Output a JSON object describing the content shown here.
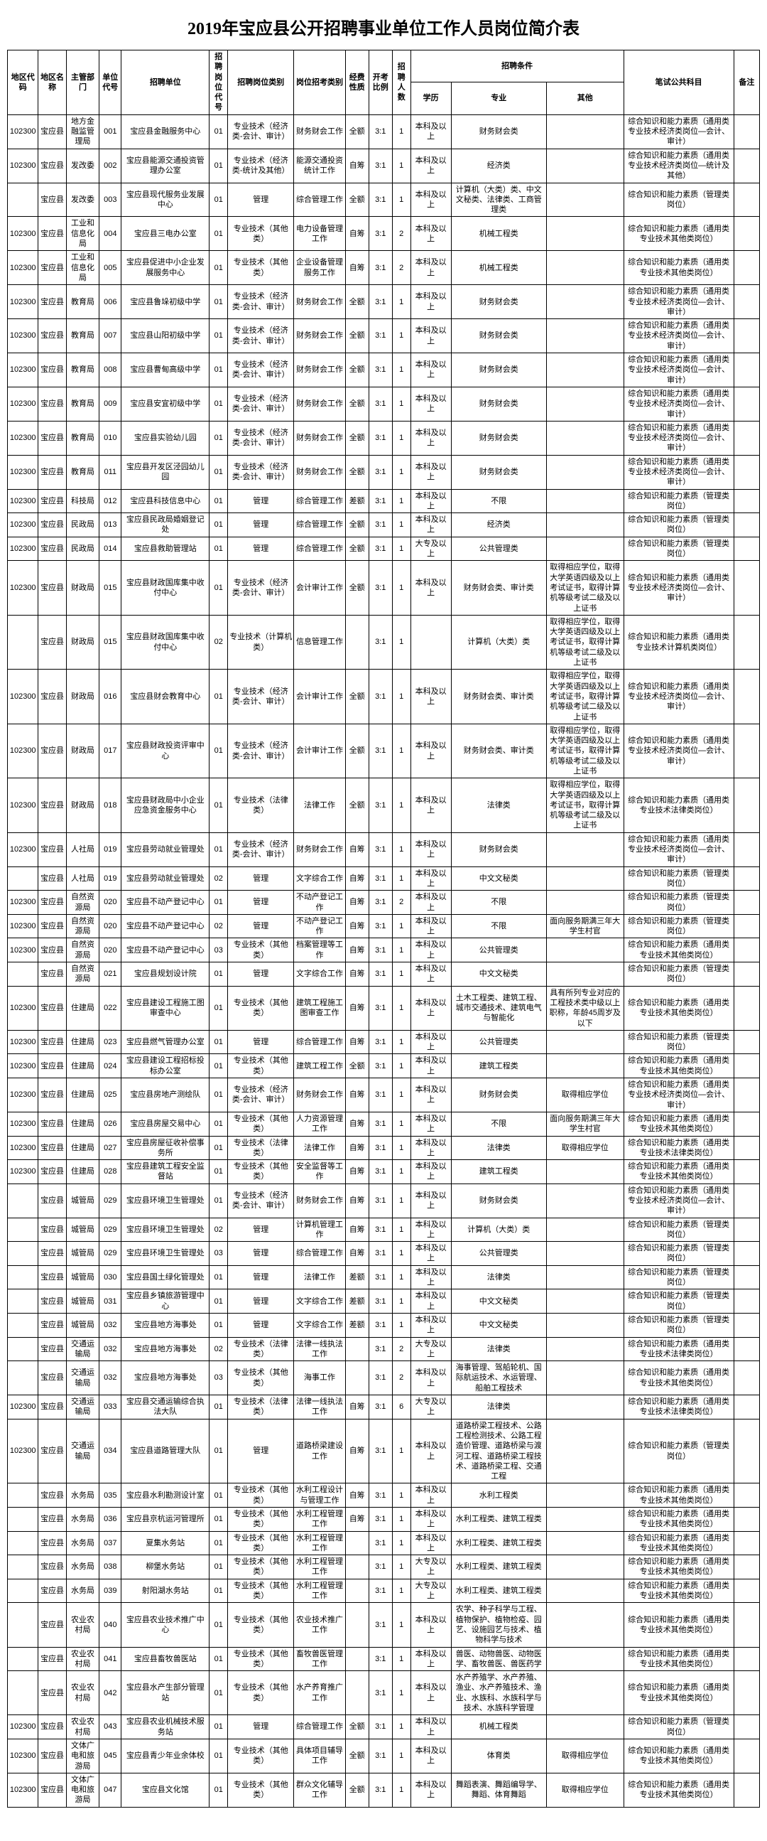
{
  "title": "2019年宝应县公开招聘事业单位工作人员岗位简介表",
  "headers": {
    "h1": "地区代码",
    "h2": "地区名称",
    "h3": "主管部门",
    "h4": "单位代号",
    "h5": "招聘单位",
    "h6": "招聘岗位代号",
    "h7": "招聘岗位类别",
    "h8": "岗位招考类别",
    "h9": "经费性质",
    "h10": "开考比例",
    "h11": "招聘人数",
    "h12": "招聘条件",
    "h12a": "学历",
    "h12b": "专业",
    "h12c": "其他",
    "h13": "笔试公共科目",
    "h14": "备注"
  },
  "rows": [
    {
      "c": "102300",
      "n": "宝应县",
      "d": "地方金融监管理局",
      "uc": "001",
      "u": "宝应县金融服务中心",
      "pc": "01",
      "pt": "专业技术（经济类-会计、审计）",
      "cat": "财务财会工作",
      "f": "全额",
      "r": "3:1",
      "num": "1",
      "edu": "本科及以上",
      "maj": "财务财会类",
      "oth": "",
      "ex": "综合知识和能力素质（通用类专业技术经济类岗位—会计、审计）",
      "rm": ""
    },
    {
      "c": "102300",
      "n": "宝应县",
      "d": "发改委",
      "uc": "002",
      "u": "宝应县能源交通投资管理办公室",
      "pc": "01",
      "pt": "专业技术（经济类-统计及其他）",
      "cat": "能源交通投资统计工作",
      "f": "自筹",
      "r": "3:1",
      "num": "1",
      "edu": "本科及以上",
      "maj": "经济类",
      "oth": "",
      "ex": "综合知识和能力素质（通用类专业技术经济类岗位—统计及其他）",
      "rm": ""
    },
    {
      "c": "",
      "n": "宝应县",
      "d": "发改委",
      "uc": "003",
      "u": "宝应县现代服务业发展中心",
      "pc": "01",
      "pt": "管理",
      "cat": "综合管理工作",
      "f": "全额",
      "r": "3:1",
      "num": "1",
      "edu": "本科及以上",
      "maj": "计算机（大类）类、中文文秘类、法律类、工商管理类",
      "oth": "",
      "ex": "综合知识和能力素质（管理类岗位）",
      "rm": ""
    },
    {
      "c": "102300",
      "n": "宝应县",
      "d": "工业和信息化局",
      "uc": "004",
      "u": "宝应县三电办公室",
      "pc": "01",
      "pt": "专业技术（其他类）",
      "cat": "电力设备管理工作",
      "f": "自筹",
      "r": "3:1",
      "num": "2",
      "edu": "本科及以上",
      "maj": "机械工程类",
      "oth": "",
      "ex": "综合知识和能力素质（通用类专业技术其他类岗位）",
      "rm": ""
    },
    {
      "c": "102300",
      "n": "宝应县",
      "d": "工业和信息化局",
      "uc": "005",
      "u": "宝应县促进中小企业发展服务中心",
      "pc": "01",
      "pt": "专业技术（其他类）",
      "cat": "企业设备管理服务工作",
      "f": "自筹",
      "r": "3:1",
      "num": "2",
      "edu": "本科及以上",
      "maj": "机械工程类",
      "oth": "",
      "ex": "综合知识和能力素质（通用类专业技术其他类岗位）",
      "rm": ""
    },
    {
      "c": "102300",
      "n": "宝应县",
      "d": "教育局",
      "uc": "006",
      "u": "宝应县鲁垛初级中学",
      "pc": "01",
      "pt": "专业技术（经济类-会计、审计）",
      "cat": "财务财会工作",
      "f": "全额",
      "r": "3:1",
      "num": "1",
      "edu": "本科及以上",
      "maj": "财务财会类",
      "oth": "",
      "ex": "综合知识和能力素质（通用类专业技术经济类岗位—会计、审计）",
      "rm": ""
    },
    {
      "c": "102300",
      "n": "宝应县",
      "d": "教育局",
      "uc": "007",
      "u": "宝应县山阳初级中学",
      "pc": "01",
      "pt": "专业技术（经济类-会计、审计）",
      "cat": "财务财会工作",
      "f": "全额",
      "r": "3:1",
      "num": "1",
      "edu": "本科及以上",
      "maj": "财务财会类",
      "oth": "",
      "ex": "综合知识和能力素质（通用类专业技术经济类岗位—会计、审计）",
      "rm": ""
    },
    {
      "c": "102300",
      "n": "宝应县",
      "d": "教育局",
      "uc": "008",
      "u": "宝应县曹甸高级中学",
      "pc": "01",
      "pt": "专业技术（经济类-会计、审计）",
      "cat": "财务财会工作",
      "f": "全额",
      "r": "3:1",
      "num": "1",
      "edu": "本科及以上",
      "maj": "财务财会类",
      "oth": "",
      "ex": "综合知识和能力素质（通用类专业技术经济类岗位—会计、审计）",
      "rm": ""
    },
    {
      "c": "102300",
      "n": "宝应县",
      "d": "教育局",
      "uc": "009",
      "u": "宝应县安宜初级中学",
      "pc": "01",
      "pt": "专业技术（经济类-会计、审计）",
      "cat": "财务财会工作",
      "f": "全额",
      "r": "3:1",
      "num": "1",
      "edu": "本科及以上",
      "maj": "财务财会类",
      "oth": "",
      "ex": "综合知识和能力素质（通用类专业技术经济类岗位—会计、审计）",
      "rm": ""
    },
    {
      "c": "102300",
      "n": "宝应县",
      "d": "教育局",
      "uc": "010",
      "u": "宝应县实验幼儿园",
      "pc": "01",
      "pt": "专业技术（经济类-会计、审计）",
      "cat": "财务财会工作",
      "f": "全额",
      "r": "3:1",
      "num": "1",
      "edu": "本科及以上",
      "maj": "财务财会类",
      "oth": "",
      "ex": "综合知识和能力素质（通用类专业技术经济类岗位—会计、审计）",
      "rm": ""
    },
    {
      "c": "102300",
      "n": "宝应县",
      "d": "教育局",
      "uc": "011",
      "u": "宝应县开发区泾园幼儿园",
      "pc": "01",
      "pt": "专业技术（经济类-会计、审计）",
      "cat": "财务财会工作",
      "f": "全额",
      "r": "3:1",
      "num": "1",
      "edu": "本科及以上",
      "maj": "财务财会类",
      "oth": "",
      "ex": "综合知识和能力素质（通用类专业技术经济类岗位—会计、审计）",
      "rm": ""
    },
    {
      "c": "102300",
      "n": "宝应县",
      "d": "科技局",
      "uc": "012",
      "u": "宝应县科技信息中心",
      "pc": "01",
      "pt": "管理",
      "cat": "综合管理工作",
      "f": "差额",
      "r": "3:1",
      "num": "1",
      "edu": "本科及以上",
      "maj": "不限",
      "oth": "",
      "ex": "综合知识和能力素质（管理类岗位）",
      "rm": ""
    },
    {
      "c": "102300",
      "n": "宝应县",
      "d": "民政局",
      "uc": "013",
      "u": "宝应县民政局婚姻登记处",
      "pc": "01",
      "pt": "管理",
      "cat": "综合管理工作",
      "f": "全额",
      "r": "3:1",
      "num": "1",
      "edu": "本科及以上",
      "maj": "经济类",
      "oth": "",
      "ex": "综合知识和能力素质（管理类岗位）",
      "rm": ""
    },
    {
      "c": "102300",
      "n": "宝应县",
      "d": "民政局",
      "uc": "014",
      "u": "宝应县救助管理站",
      "pc": "01",
      "pt": "管理",
      "cat": "综合管理工作",
      "f": "全额",
      "r": "3:1",
      "num": "1",
      "edu": "大专及以上",
      "maj": "公共管理类",
      "oth": "",
      "ex": "综合知识和能力素质（管理类岗位）",
      "rm": ""
    },
    {
      "c": "102300",
      "n": "宝应县",
      "d": "财政局",
      "uc": "015",
      "u": "宝应县财政国库集中收付中心",
      "pc": "01",
      "pt": "专业技术（经济类-会计、审计）",
      "cat": "会计审计工作",
      "f": "全额",
      "r": "3:1",
      "num": "1",
      "edu": "本科及以上",
      "maj": "财务财会类、审计类",
      "oth": "取得相应学位，取得大学英语四级及以上考试证书，取得计算机等级考试二级及以上证书",
      "ex": "综合知识和能力素质（通用类专业技术经济类岗位—会计、审计）",
      "rm": ""
    },
    {
      "c": "",
      "n": "宝应县",
      "d": "财政局",
      "uc": "015",
      "u": "宝应县财政国库集中收付中心",
      "pc": "02",
      "pt": "专业技术（计算机类）",
      "cat": "信息管理工作",
      "f": "",
      "r": "3:1",
      "num": "1",
      "edu": "",
      "maj": "计算机（大类）类",
      "oth": "取得相应学位，取得大学英语四级及以上考试证书，取得计算机等级考试二级及以上证书",
      "ex": "综合知识和能力素质（通用类专业技术计算机类岗位）",
      "rm": ""
    },
    {
      "c": "102300",
      "n": "宝应县",
      "d": "财政局",
      "uc": "016",
      "u": "宝应县财会教育中心",
      "pc": "01",
      "pt": "专业技术（经济类-会计、审计）",
      "cat": "会计审计工作",
      "f": "全额",
      "r": "3:1",
      "num": "1",
      "edu": "本科及以上",
      "maj": "财务财会类、审计类",
      "oth": "取得相应学位，取得大学英语四级及以上考试证书，取得计算机等级考试二级及以上证书",
      "ex": "综合知识和能力素质（通用类专业技术经济类岗位—会计、审计）",
      "rm": ""
    },
    {
      "c": "102300",
      "n": "宝应县",
      "d": "财政局",
      "uc": "017",
      "u": "宝应县财政投资评审中心",
      "pc": "01",
      "pt": "专业技术（经济类-会计、审计）",
      "cat": "会计审计工作",
      "f": "全额",
      "r": "3:1",
      "num": "1",
      "edu": "本科及以上",
      "maj": "财务财会类、审计类",
      "oth": "取得相应学位，取得大学英语四级及以上考试证书，取得计算机等级考试二级及以上证书",
      "ex": "综合知识和能力素质（通用类专业技术经济类岗位—会计、审计）",
      "rm": ""
    },
    {
      "c": "102300",
      "n": "宝应县",
      "d": "财政局",
      "uc": "018",
      "u": "宝应县财政局中小企业应急资金服务中心",
      "pc": "01",
      "pt": "专业技术（法律类）",
      "cat": "法律工作",
      "f": "全额",
      "r": "3:1",
      "num": "1",
      "edu": "本科及以上",
      "maj": "法律类",
      "oth": "取得相应学位，取得大学英语四级及以上考试证书，取得计算机等级考试二级及以上证书",
      "ex": "综合知识和能力素质（通用类专业技术法律类岗位）",
      "rm": ""
    },
    {
      "c": "102300",
      "n": "宝应县",
      "d": "人社局",
      "uc": "019",
      "u": "宝应县劳动就业管理处",
      "pc": "01",
      "pt": "专业技术（经济类-会计、审计）",
      "cat": "财务财会工作",
      "f": "自筹",
      "r": "3:1",
      "num": "1",
      "edu": "本科及以上",
      "maj": "财务财会类",
      "oth": "",
      "ex": "综合知识和能力素质（通用类专业技术经济类岗位—会计、审计）",
      "rm": ""
    },
    {
      "c": "",
      "n": "宝应县",
      "d": "人社局",
      "uc": "019",
      "u": "宝应县劳动就业管理处",
      "pc": "02",
      "pt": "管理",
      "cat": "文字综合工作",
      "f": "自筹",
      "r": "3:1",
      "num": "1",
      "edu": "本科及以上",
      "maj": "中文文秘类",
      "oth": "",
      "ex": "综合知识和能力素质（管理类岗位）",
      "rm": ""
    },
    {
      "c": "102300",
      "n": "宝应县",
      "d": "自然资源局",
      "uc": "020",
      "u": "宝应县不动产登记中心",
      "pc": "01",
      "pt": "管理",
      "cat": "不动产登记工作",
      "f": "自筹",
      "r": "3:1",
      "num": "2",
      "edu": "本科及以上",
      "maj": "不限",
      "oth": "",
      "ex": "综合知识和能力素质（管理类岗位）",
      "rm": ""
    },
    {
      "c": "102300",
      "n": "宝应县",
      "d": "自然资源局",
      "uc": "020",
      "u": "宝应县不动产登记中心",
      "pc": "02",
      "pt": "管理",
      "cat": "不动产登记工作",
      "f": "自筹",
      "r": "3:1",
      "num": "1",
      "edu": "本科及以上",
      "maj": "不限",
      "oth": "面向服务期满三年大学生村官",
      "ex": "综合知识和能力素质（管理类岗位）",
      "rm": ""
    },
    {
      "c": "102300",
      "n": "宝应县",
      "d": "自然资源局",
      "uc": "020",
      "u": "宝应县不动产登记中心",
      "pc": "03",
      "pt": "专业技术（其他类）",
      "cat": "档案管理等工作",
      "f": "自筹",
      "r": "3:1",
      "num": "1",
      "edu": "本科及以上",
      "maj": "公共管理类",
      "oth": "",
      "ex": "综合知识和能力素质（通用类专业技术其他类岗位）",
      "rm": ""
    },
    {
      "c": "",
      "n": "宝应县",
      "d": "自然资源局",
      "uc": "021",
      "u": "宝应县规划设计院",
      "pc": "01",
      "pt": "管理",
      "cat": "文字综合工作",
      "f": "自筹",
      "r": "3:1",
      "num": "1",
      "edu": "本科及以上",
      "maj": "中文文秘类",
      "oth": "",
      "ex": "综合知识和能力素质（管理类岗位）",
      "rm": ""
    },
    {
      "c": "102300",
      "n": "宝应县",
      "d": "住建局",
      "uc": "022",
      "u": "宝应县建设工程施工图审查中心",
      "pc": "01",
      "pt": "专业技术（其他类）",
      "cat": "建筑工程施工图审查工作",
      "f": "自筹",
      "r": "3:1",
      "num": "1",
      "edu": "本科及以上",
      "maj": "土木工程类、建筑工程、城市交通技术、建筑电气与智能化",
      "oth": "具有所列专业对应的工程技术类中级以上职称，年龄45周岁及以下",
      "ex": "综合知识和能力素质（通用类专业技术其他类岗位）",
      "rm": ""
    },
    {
      "c": "102300",
      "n": "宝应县",
      "d": "住建局",
      "uc": "023",
      "u": "宝应县燃气管理办公室",
      "pc": "01",
      "pt": "管理",
      "cat": "综合管理工作",
      "f": "自筹",
      "r": "3:1",
      "num": "1",
      "edu": "本科及以上",
      "maj": "公共管理类",
      "oth": "",
      "ex": "综合知识和能力素质（管理类岗位）",
      "rm": ""
    },
    {
      "c": "102300",
      "n": "宝应县",
      "d": "住建局",
      "uc": "024",
      "u": "宝应县建设工程招标投标办公室",
      "pc": "01",
      "pt": "专业技术（其他类）",
      "cat": "建筑工程工作",
      "f": "全额",
      "r": "3:1",
      "num": "1",
      "edu": "本科及以上",
      "maj": "建筑工程类",
      "oth": "",
      "ex": "综合知识和能力素质（通用类专业技术其他类岗位）",
      "rm": ""
    },
    {
      "c": "102300",
      "n": "宝应县",
      "d": "住建局",
      "uc": "025",
      "u": "宝应县房地产测绘队",
      "pc": "01",
      "pt": "专业技术（经济类-会计、审计）",
      "cat": "财务财会工作",
      "f": "自筹",
      "r": "3:1",
      "num": "1",
      "edu": "本科及以上",
      "maj": "财务财会类",
      "oth": "取得相应学位",
      "ex": "综合知识和能力素质（通用类专业技术经济类岗位—会计、审计）",
      "rm": ""
    },
    {
      "c": "102300",
      "n": "宝应县",
      "d": "住建局",
      "uc": "026",
      "u": "宝应县房屋交易中心",
      "pc": "01",
      "pt": "专业技术（其他类）",
      "cat": "人力资源管理工作",
      "f": "自筹",
      "r": "3:1",
      "num": "1",
      "edu": "本科及以上",
      "maj": "不限",
      "oth": "面向服务期满三年大学生村官",
      "ex": "综合知识和能力素质（通用类专业技术其他类岗位）",
      "rm": ""
    },
    {
      "c": "102300",
      "n": "宝应县",
      "d": "住建局",
      "uc": "027",
      "u": "宝应县房屋征收补偿事务所",
      "pc": "01",
      "pt": "专业技术（法律类）",
      "cat": "法律工作",
      "f": "自筹",
      "r": "3:1",
      "num": "1",
      "edu": "本科及以上",
      "maj": "法律类",
      "oth": "取得相应学位",
      "ex": "综合知识和能力素质（通用类专业技术法律类岗位）",
      "rm": ""
    },
    {
      "c": "102300",
      "n": "宝应县",
      "d": "住建局",
      "uc": "028",
      "u": "宝应县建筑工程安全监督站",
      "pc": "01",
      "pt": "专业技术（其他类）",
      "cat": "安全监督等工作",
      "f": "自筹",
      "r": "3:1",
      "num": "1",
      "edu": "本科及以上",
      "maj": "建筑工程类",
      "oth": "",
      "ex": "综合知识和能力素质（通用类专业技术其他类岗位）",
      "rm": ""
    },
    {
      "c": "",
      "n": "宝应县",
      "d": "城管局",
      "uc": "029",
      "u": "宝应县环境卫生管理处",
      "pc": "01",
      "pt": "专业技术（经济类-会计、审计）",
      "cat": "财务财会工作",
      "f": "自筹",
      "r": "3:1",
      "num": "1",
      "edu": "本科及以上",
      "maj": "财务财会类",
      "oth": "",
      "ex": "综合知识和能力素质（通用类专业技术经济类岗位—会计、审计）",
      "rm": ""
    },
    {
      "c": "",
      "n": "宝应县",
      "d": "城管局",
      "uc": "029",
      "u": "宝应县环境卫生管理处",
      "pc": "02",
      "pt": "管理",
      "cat": "计算机管理工作",
      "f": "自筹",
      "r": "3:1",
      "num": "1",
      "edu": "本科及以上",
      "maj": "计算机（大类）类",
      "oth": "",
      "ex": "综合知识和能力素质（管理类岗位）",
      "rm": ""
    },
    {
      "c": "",
      "n": "宝应县",
      "d": "城管局",
      "uc": "029",
      "u": "宝应县环境卫生管理处",
      "pc": "03",
      "pt": "管理",
      "cat": "综合管理工作",
      "f": "自筹",
      "r": "3:1",
      "num": "1",
      "edu": "本科及以上",
      "maj": "公共管理类",
      "oth": "",
      "ex": "综合知识和能力素质（管理类岗位）",
      "rm": ""
    },
    {
      "c": "",
      "n": "宝应县",
      "d": "城管局",
      "uc": "030",
      "u": "宝应县国土绿化管理处",
      "pc": "01",
      "pt": "管理",
      "cat": "法律工作",
      "f": "差额",
      "r": "3:1",
      "num": "1",
      "edu": "本科及以上",
      "maj": "法律类",
      "oth": "",
      "ex": "综合知识和能力素质（管理类岗位）",
      "rm": ""
    },
    {
      "c": "",
      "n": "宝应县",
      "d": "城管局",
      "uc": "031",
      "u": "宝应县乡镇旅游管理中心",
      "pc": "01",
      "pt": "管理",
      "cat": "文字综合工作",
      "f": "差额",
      "r": "3:1",
      "num": "1",
      "edu": "本科及以上",
      "maj": "中文文秘类",
      "oth": "",
      "ex": "综合知识和能力素质（管理类岗位）",
      "rm": ""
    },
    {
      "c": "",
      "n": "宝应县",
      "d": "城管局",
      "uc": "032",
      "u": "宝应县地方海事处",
      "pc": "01",
      "pt": "管理",
      "cat": "文字综合工作",
      "f": "差额",
      "r": "3:1",
      "num": "1",
      "edu": "本科及以上",
      "maj": "中文文秘类",
      "oth": "",
      "ex": "综合知识和能力素质（管理类岗位）",
      "rm": ""
    },
    {
      "c": "",
      "n": "宝应县",
      "d": "交通运输局",
      "uc": "032",
      "u": "宝应县地方海事处",
      "pc": "02",
      "pt": "专业技术（法律类）",
      "cat": "法律一线执法工作",
      "f": "",
      "r": "3:1",
      "num": "2",
      "edu": "大专及以上",
      "maj": "法律类",
      "oth": "",
      "ex": "综合知识和能力素质（通用类专业技术法律类岗位）",
      "rm": ""
    },
    {
      "c": "",
      "n": "宝应县",
      "d": "交通运输局",
      "uc": "032",
      "u": "宝应县地方海事处",
      "pc": "03",
      "pt": "专业技术（其他类）",
      "cat": "海事工作",
      "f": "",
      "r": "3:1",
      "num": "2",
      "edu": "本科及以上",
      "maj": "海事管理、驾船轮机、国际航运技术、水运管理、船舶工程技术",
      "oth": "",
      "ex": "综合知识和能力素质（通用类专业技术其他类岗位）",
      "rm": ""
    },
    {
      "c": "102300",
      "n": "宝应县",
      "d": "交通运输局",
      "uc": "033",
      "u": "宝应县交通运输综合执法大队",
      "pc": "01",
      "pt": "专业技术（法律类）",
      "cat": "法律一线执法工作",
      "f": "自筹",
      "r": "3:1",
      "num": "6",
      "edu": "大专及以上",
      "maj": "法律类",
      "oth": "",
      "ex": "综合知识和能力素质（通用类专业技术法律类岗位）",
      "rm": ""
    },
    {
      "c": "102300",
      "n": "宝应县",
      "d": "交通运输局",
      "uc": "034",
      "u": "宝应县道路管理大队",
      "pc": "01",
      "pt": "管理",
      "cat": "道路桥梁建设工作",
      "f": "自筹",
      "r": "3:1",
      "num": "1",
      "edu": "本科及以上",
      "maj": "道路桥梁工程技术、公路工程检测技术、公路工程造价管理、道路桥梁与渡河工程、道路桥梁工程技术、道路桥梁工程、交通工程",
      "oth": "",
      "ex": "综合知识和能力素质（管理类岗位）",
      "rm": ""
    },
    {
      "c": "",
      "n": "宝应县",
      "d": "水务局",
      "uc": "035",
      "u": "宝应县水利勘测设计室",
      "pc": "01",
      "pt": "专业技术（其他类）",
      "cat": "水利工程设计与管理工作",
      "f": "自筹",
      "r": "3:1",
      "num": "1",
      "edu": "本科及以上",
      "maj": "水利工程类",
      "oth": "",
      "ex": "综合知识和能力素质（通用类专业技术其他类岗位）",
      "rm": ""
    },
    {
      "c": "",
      "n": "宝应县",
      "d": "水务局",
      "uc": "036",
      "u": "宝应县京杭运河管理所",
      "pc": "01",
      "pt": "专业技术（其他类）",
      "cat": "水利工程管理工作",
      "f": "自筹",
      "r": "3:1",
      "num": "1",
      "edu": "本科及以上",
      "maj": "水利工程类、建筑工程类",
      "oth": "",
      "ex": "综合知识和能力素质（通用类专业技术其他类岗位）",
      "rm": ""
    },
    {
      "c": "",
      "n": "宝应县",
      "d": "水务局",
      "uc": "037",
      "u": "夏集水务站",
      "pc": "01",
      "pt": "专业技术（其他类）",
      "cat": "水利工程管理工作",
      "f": "",
      "r": "3:1",
      "num": "1",
      "edu": "本科及以上",
      "maj": "水利工程类、建筑工程类",
      "oth": "",
      "ex": "综合知识和能力素质（通用类专业技术其他类岗位）",
      "rm": ""
    },
    {
      "c": "",
      "n": "宝应县",
      "d": "水务局",
      "uc": "038",
      "u": "柳堡水务站",
      "pc": "01",
      "pt": "专业技术（其他类）",
      "cat": "水利工程管理工作",
      "f": "",
      "r": "3:1",
      "num": "1",
      "edu": "大专及以上",
      "maj": "水利工程类、建筑工程类",
      "oth": "",
      "ex": "综合知识和能力素质（通用类专业技术其他类岗位）",
      "rm": ""
    },
    {
      "c": "",
      "n": "宝应县",
      "d": "水务局",
      "uc": "039",
      "u": "射阳湖水务站",
      "pc": "01",
      "pt": "专业技术（其他类）",
      "cat": "水利工程管理工作",
      "f": "",
      "r": "3:1",
      "num": "1",
      "edu": "大专及以上",
      "maj": "水利工程类、建筑工程类",
      "oth": "",
      "ex": "综合知识和能力素质（通用类专业技术其他类岗位）",
      "rm": ""
    },
    {
      "c": "",
      "n": "宝应县",
      "d": "农业农村局",
      "uc": "040",
      "u": "宝应县农业技术推广中心",
      "pc": "01",
      "pt": "专业技术（其他类）",
      "cat": "农业技术推广工作",
      "f": "",
      "r": "3:1",
      "num": "1",
      "edu": "本科及以上",
      "maj": "农学、种子科学与工程、植物保护、植物检疫、园艺、设施园艺与技术、植物科学与技术",
      "oth": "",
      "ex": "综合知识和能力素质（通用类专业技术其他类岗位）",
      "rm": ""
    },
    {
      "c": "",
      "n": "宝应县",
      "d": "农业农村局",
      "uc": "041",
      "u": "宝应县畜牧兽医站",
      "pc": "01",
      "pt": "专业技术（其他类）",
      "cat": "畜牧兽医管理工作",
      "f": "",
      "r": "3:1",
      "num": "1",
      "edu": "本科及以上",
      "maj": "兽医、动物兽医、动物医学、畜牧兽医、兽医药学",
      "oth": "",
      "ex": "综合知识和能力素质（通用类专业技术其他类岗位）",
      "rm": ""
    },
    {
      "c": "",
      "n": "宝应县",
      "d": "农业农村局",
      "uc": "042",
      "u": "宝应县水产生部分管理站",
      "pc": "01",
      "pt": "专业技术（其他类）",
      "cat": "水产养育推广工作",
      "f": "",
      "r": "3:1",
      "num": "1",
      "edu": "本科及以上",
      "maj": "水产养殖学、水产养殖、渔业、水产养殖技术、渔业、水族科、水族科学与技术、水族科学管理",
      "oth": "",
      "ex": "综合知识和能力素质（通用类专业技术其他类岗位）",
      "rm": ""
    },
    {
      "c": "102300",
      "n": "宝应县",
      "d": "农业农村局",
      "uc": "043",
      "u": "宝应县农业机械技术服务站",
      "pc": "01",
      "pt": "管理",
      "cat": "综合管理工作",
      "f": "全额",
      "r": "3:1",
      "num": "1",
      "edu": "本科及以上",
      "maj": "机械工程类",
      "oth": "",
      "ex": "综合知识和能力素质（管理类岗位）",
      "rm": ""
    },
    {
      "c": "102300",
      "n": "宝应县",
      "d": "文体广电和旅游局",
      "uc": "045",
      "u": "宝应县青少年业余体校",
      "pc": "01",
      "pt": "专业技术（其他类）",
      "cat": "具体项目辅导工作",
      "f": "全额",
      "r": "3:1",
      "num": "1",
      "edu": "本科及以上",
      "maj": "体育类",
      "oth": "取得相应学位",
      "ex": "综合知识和能力素质（通用类专业技术其他类岗位）",
      "rm": ""
    },
    {
      "c": "102300",
      "n": "宝应县",
      "d": "文体广电和旅游局",
      "uc": "047",
      "u": "宝应县文化馆",
      "pc": "01",
      "pt": "专业技术（其他类）",
      "cat": "群众文化辅导工作",
      "f": "全额",
      "r": "3:1",
      "num": "1",
      "edu": "本科及以上",
      "maj": "舞蹈表演、舞蹈编导学、舞蹈、体育舞蹈",
      "oth": "取得相应学位",
      "ex": "综合知识和能力素质（通用类专业技术其他类岗位）",
      "rm": ""
    }
  ]
}
